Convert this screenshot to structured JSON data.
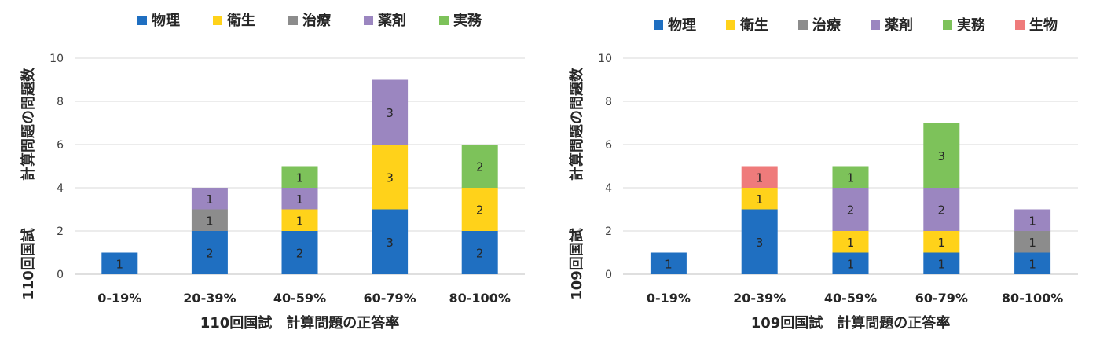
{
  "colors": {
    "物理": "#1f6fc1",
    "衛生": "#ffd21a",
    "治療": "#8c8c8c",
    "薬剤": "#9b86c0",
    "実務": "#7dc25a",
    "生物": "#ef7b7b"
  },
  "chart_data": [
    {
      "type": "bar",
      "stacked": true,
      "title": "",
      "xlabel": "110回国試　計算問題の正答率",
      "ylabel_part1": "110回国試",
      "ylabel_part2": "計算問題の問題数",
      "ylim": [
        0,
        10
      ],
      "yticks": [
        "0",
        "2",
        "4",
        "6",
        "8",
        "10"
      ],
      "categories": [
        "0-19%",
        "20-39%",
        "40-59%",
        "60-79%",
        "80-100%"
      ],
      "legend": [
        "物理",
        "衛生",
        "治療",
        "薬剤",
        "実務"
      ],
      "series": [
        {
          "name": "物理",
          "values": [
            1,
            2,
            2,
            3,
            2
          ]
        },
        {
          "name": "衛生",
          "values": [
            0,
            0,
            1,
            3,
            2
          ]
        },
        {
          "name": "治療",
          "values": [
            0,
            1,
            0,
            0,
            0
          ]
        },
        {
          "name": "薬剤",
          "values": [
            0,
            1,
            1,
            3,
            0
          ]
        },
        {
          "name": "実務",
          "values": [
            0,
            0,
            1,
            0,
            2
          ]
        }
      ]
    },
    {
      "type": "bar",
      "stacked": true,
      "title": "",
      "xlabel": "109回国試　計算問題の正答率",
      "ylabel_part1": "109回国試",
      "ylabel_part2": "計算問題の問題数",
      "ylim": [
        0,
        10
      ],
      "yticks": [
        "0",
        "2",
        "4",
        "6",
        "8",
        "10"
      ],
      "categories": [
        "0-19%",
        "20-39%",
        "40-59%",
        "60-79%",
        "80-100%"
      ],
      "legend": [
        "物理",
        "衛生",
        "治療",
        "薬剤",
        "実務",
        "生物"
      ],
      "series": [
        {
          "name": "物理",
          "values": [
            1,
            3,
            1,
            1,
            1
          ]
        },
        {
          "name": "衛生",
          "values": [
            0,
            1,
            1,
            1,
            0
          ]
        },
        {
          "name": "治療",
          "values": [
            0,
            0,
            0,
            0,
            1
          ]
        },
        {
          "name": "薬剤",
          "values": [
            0,
            0,
            2,
            2,
            1
          ]
        },
        {
          "name": "実務",
          "values": [
            0,
            0,
            1,
            3,
            0
          ]
        },
        {
          "name": "生物",
          "values": [
            0,
            1,
            0,
            0,
            0
          ]
        }
      ]
    }
  ]
}
